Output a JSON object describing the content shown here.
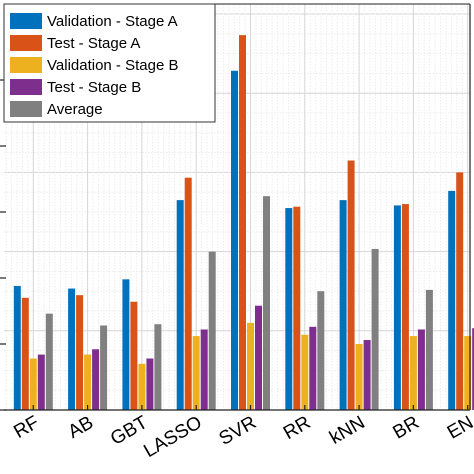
{
  "chart_data": {
    "type": "bar",
    "categories": [
      "RF",
      "AB",
      "GBT",
      "LASSO",
      "SVR",
      "RR",
      "kNN",
      "BR",
      "EN"
    ],
    "series": [
      {
        "name": "Validation - Stage A",
        "color": "#0072BD",
        "values": [
          0.94,
          0.92,
          0.99,
          1.59,
          2.57,
          1.53,
          1.59,
          1.55,
          1.66
        ]
      },
      {
        "name": "Test - Stage A",
        "color": "#D95319",
        "values": [
          0.85,
          0.87,
          0.82,
          1.76,
          2.84,
          1.54,
          1.89,
          1.56,
          1.8
        ]
      },
      {
        "name": "Validation - Stage B",
        "color": "#EDB120",
        "values": [
          0.39,
          0.42,
          0.35,
          0.56,
          0.66,
          0.57,
          0.5,
          0.56,
          0.56
        ]
      },
      {
        "name": "Test - Stage B",
        "color": "#7E2F8E",
        "values": [
          0.42,
          0.46,
          0.39,
          0.61,
          0.79,
          0.63,
          0.53,
          0.61,
          0.62
        ]
      },
      {
        "name": "Average",
        "color": "#808080",
        "values": [
          0.73,
          0.64,
          0.65,
          1.2,
          1.62,
          0.9,
          1.22,
          0.91,
          1.27
        ]
      }
    ],
    "ylim": [
      0,
      3
    ],
    "grid": true,
    "legend_position": "top-left"
  }
}
